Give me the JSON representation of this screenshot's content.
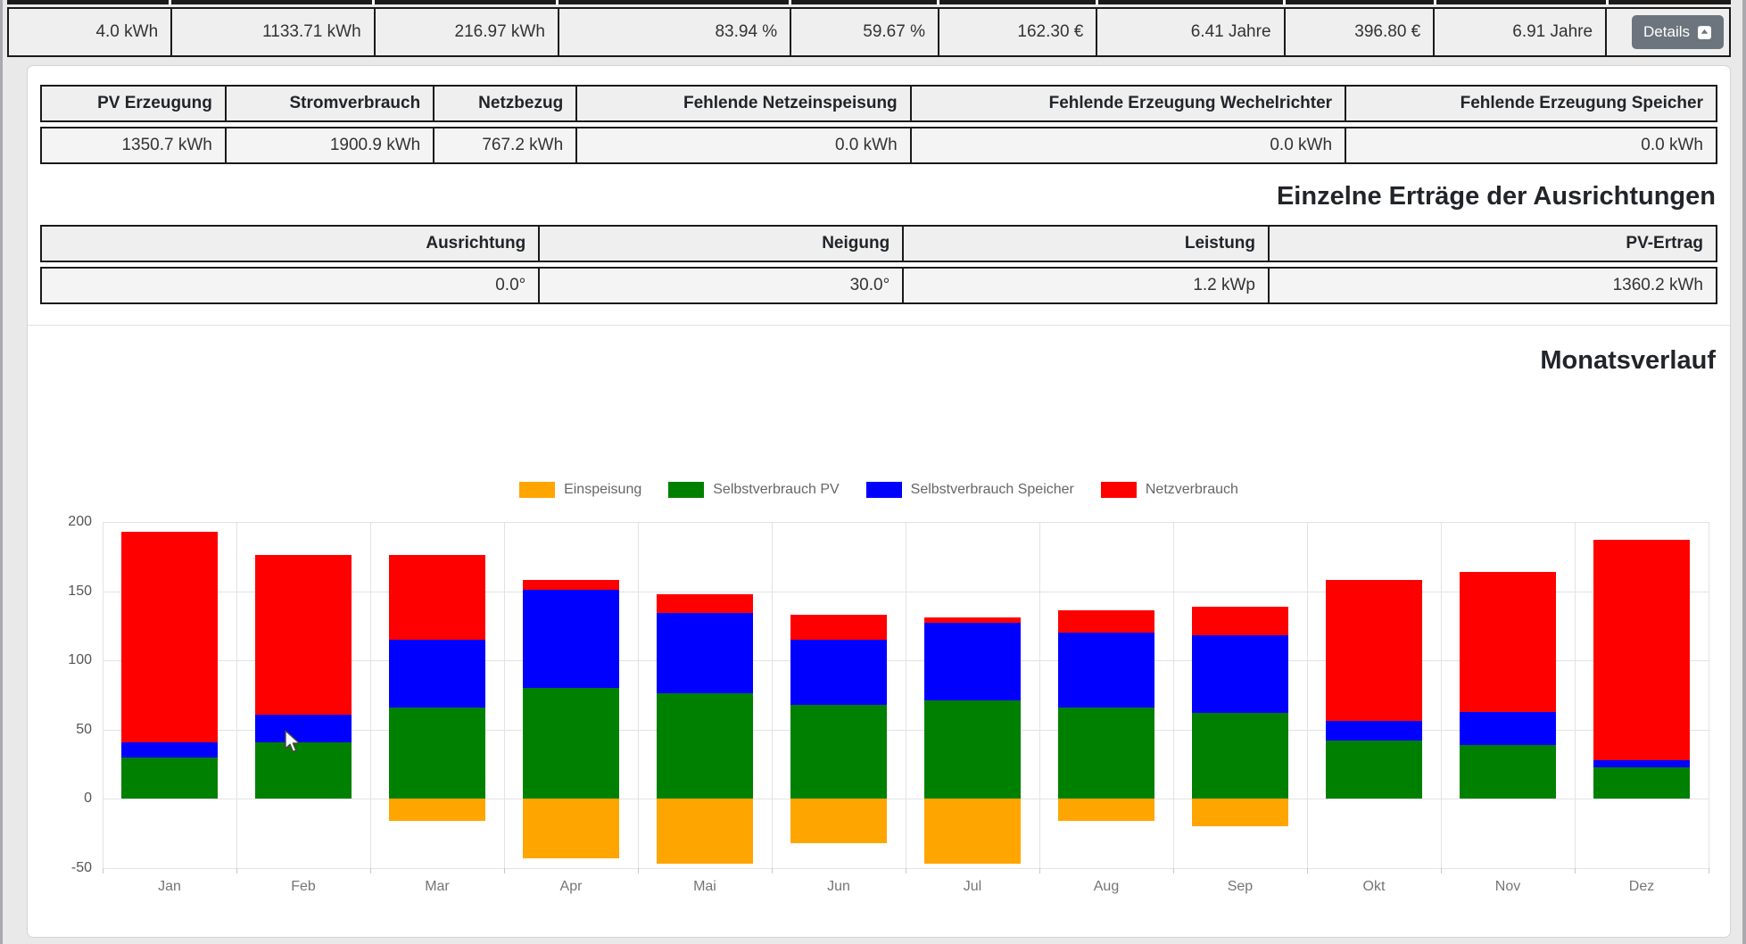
{
  "top_bar": {
    "cells": [
      "4.0 kWh",
      "1133.71 kWh",
      "216.97 kWh",
      "83.94 %",
      "59.67 %",
      "162.30 €",
      "6.41 Jahre",
      "396.80 €",
      "6.91 Jahre"
    ],
    "details_button": {
      "label": "Details",
      "icon": "caret-up-square-icon"
    }
  },
  "summary_table": {
    "headers": [
      "PV Erzeugung",
      "Stromverbrauch",
      "Netzbezug",
      "Fehlende Netzeinspeisung",
      "Fehlende Erzeugung Wechelrichter",
      "Fehlende Erzeugung Speicher"
    ],
    "rows": [
      [
        "1350.7 kWh",
        "1900.9 kWh",
        "767.2 kWh",
        "0.0 kWh",
        "0.0 kWh",
        "0.0 kWh"
      ]
    ]
  },
  "orientation_section": {
    "title": "Einzelne Erträge der Ausrichtungen"
  },
  "orientation_table": {
    "headers": [
      "Ausrichtung",
      "Neigung",
      "Leistung",
      "PV-Ertrag"
    ],
    "rows": [
      [
        "0.0°",
        "30.0°",
        "1.2 kWp",
        "1360.2 kWh"
      ]
    ]
  },
  "chart_section": {
    "title": "Monatsverlauf"
  },
  "chart_data": {
    "type": "bar",
    "stacked": true,
    "categories": [
      "Jan",
      "Feb",
      "Mar",
      "Apr",
      "Mai",
      "Jun",
      "Jul",
      "Aug",
      "Sep",
      "Okt",
      "Nov",
      "Dez"
    ],
    "series": [
      {
        "name": "Einspeisung",
        "color": "#FFA500",
        "values": [
          0,
          0,
          -16,
          -43,
          -47,
          -32,
          -47,
          -16,
          -20,
          0,
          0,
          0
        ]
      },
      {
        "name": "Selbstverbrauch PV",
        "color": "#008000",
        "values": [
          30,
          41,
          66,
          80,
          76,
          68,
          71,
          66,
          62,
          42,
          39,
          23
        ]
      },
      {
        "name": "Selbstverbrauch Speicher",
        "color": "#0000FF",
        "values": [
          11,
          20,
          49,
          71,
          58,
          47,
          56,
          54,
          56,
          14,
          24,
          5
        ]
      },
      {
        "name": "Netzverbrauch",
        "color": "#FF0000",
        "values": [
          152,
          115,
          61,
          7,
          14,
          18,
          4,
          16,
          21,
          102,
          101,
          159
        ]
      }
    ],
    "title": "Monatsverlauf",
    "xlabel": "",
    "ylabel": "",
    "ylim": [
      -50,
      200
    ],
    "yticks": [
      200,
      150,
      100,
      50,
      0,
      -50
    ],
    "grid": true,
    "legend_position": "top"
  }
}
